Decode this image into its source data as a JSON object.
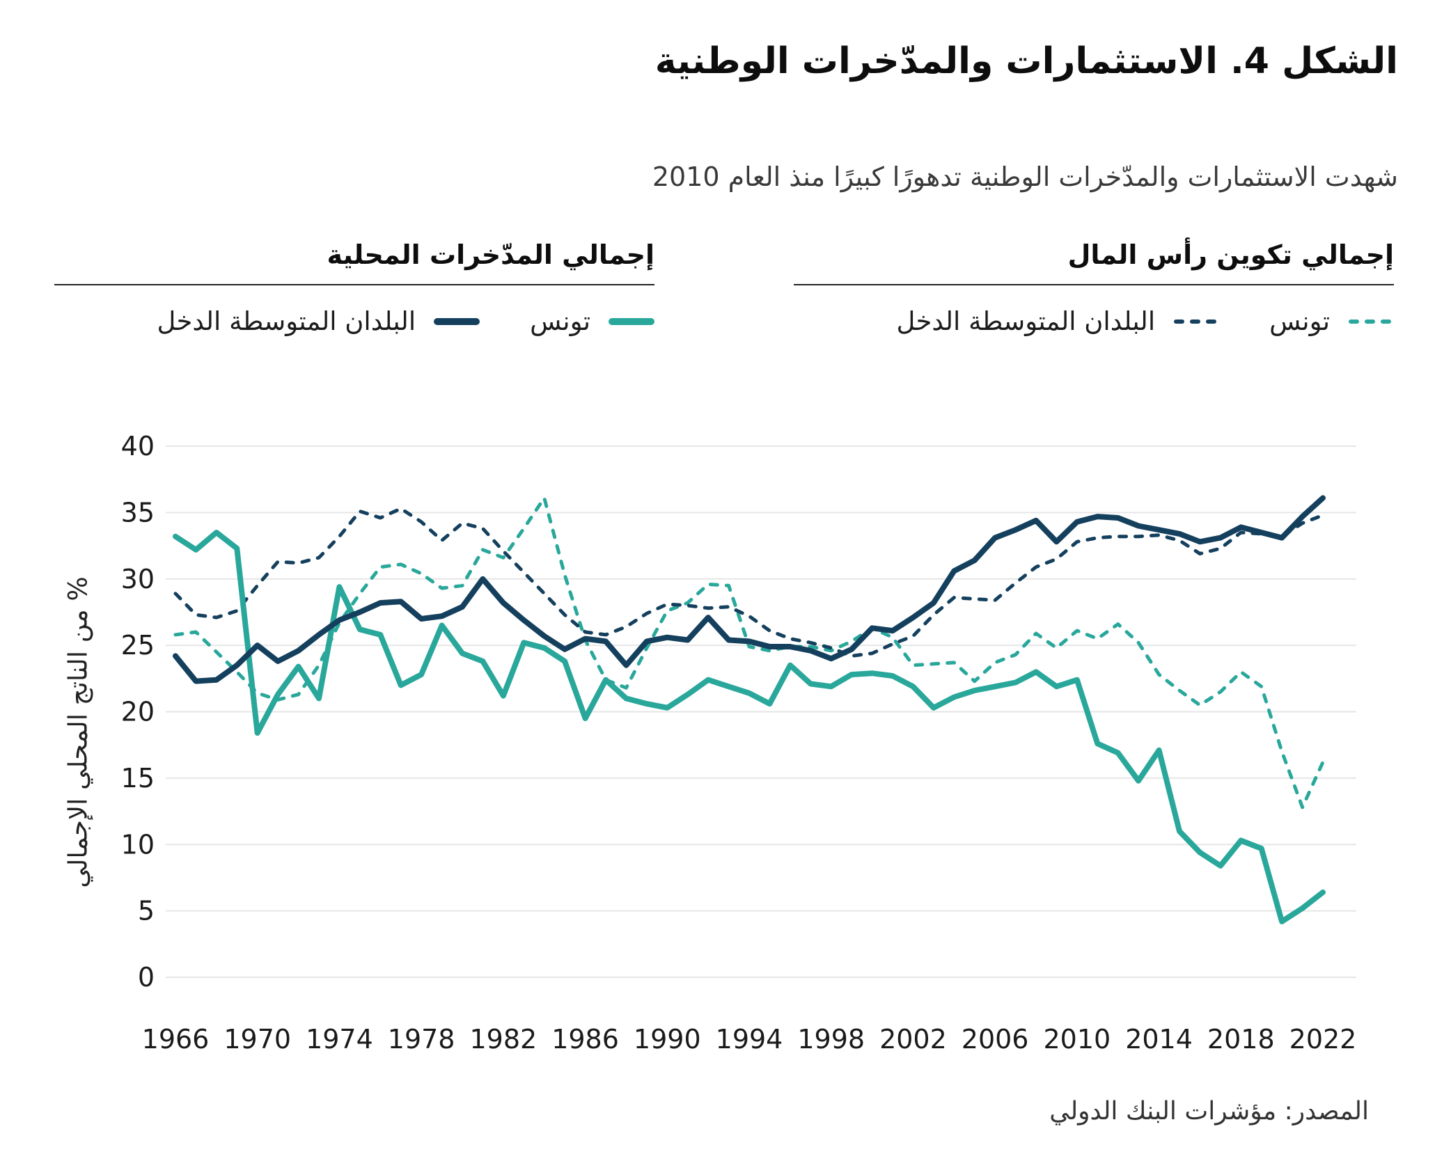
{
  "header": {
    "title": "الشكل 4. الاستثمارات والمدّخرات الوطنية",
    "subtitle": "شهدت الاستثمارات والمدّخرات الوطنية تدهورًا كبيرًا منذ العام 2010"
  },
  "legend": {
    "capital_formation": {
      "title": "إجمالي تكوين رأس المال",
      "items": [
        {
          "label": "تونس",
          "series": "tunisia_gcf"
        },
        {
          "label": "البلدان المتوسطة الدخل",
          "series": "mic_gcf"
        }
      ]
    },
    "domestic_savings": {
      "title": "إجمالي المدّخرات المحلية",
      "items": [
        {
          "label": "تونس",
          "series": "tunisia_gds"
        },
        {
          "label": "البلدان المتوسطة الدخل",
          "series": "mic_gds"
        }
      ]
    }
  },
  "source": "المصدر: مؤشرات البنك الدولي",
  "colors": {
    "teal": "#29A79B",
    "navy": "#14405E",
    "gridline": "#e6e6e6"
  },
  "chart_data": {
    "type": "line",
    "title": "",
    "xlabel": "",
    "ylabel": "% من الناتج المحلي الإجمالي",
    "ylim": [
      0,
      40
    ],
    "ytick_step": 5,
    "xlim": [
      1966,
      2022
    ],
    "xtick_step": 4,
    "grid": "horizontal",
    "legend_position": "top",
    "x": [
      1966,
      1967,
      1968,
      1969,
      1970,
      1971,
      1972,
      1973,
      1974,
      1975,
      1976,
      1977,
      1978,
      1979,
      1980,
      1981,
      1982,
      1983,
      1984,
      1985,
      1986,
      1987,
      1988,
      1989,
      1990,
      1991,
      1992,
      1993,
      1994,
      1995,
      1996,
      1997,
      1998,
      1999,
      2000,
      2001,
      2002,
      2003,
      2004,
      2005,
      2006,
      2007,
      2008,
      2009,
      2010,
      2011,
      2012,
      2013,
      2014,
      2015,
      2016,
      2017,
      2018,
      2019,
      2020,
      2021,
      2022
    ],
    "series": [
      {
        "key": "tunisia_gcf",
        "name": "تونس — إجمالي تكوين رأس المال",
        "color": "#29A79B",
        "style": "dashed",
        "values": [
          25.8,
          26.0,
          24.5,
          23.0,
          21.4,
          20.9,
          21.3,
          23.5,
          26.7,
          28.9,
          30.9,
          31.1,
          30.4,
          29.3,
          29.5,
          32.2,
          31.6,
          33.8,
          36.1,
          30.3,
          25.4,
          22.4,
          21.8,
          24.8,
          27.6,
          28.2,
          29.6,
          29.5,
          24.9,
          24.6,
          24.9,
          24.9,
          24.6,
          25.3,
          26.3,
          25.6,
          23.5,
          23.6,
          23.7,
          22.3,
          23.7,
          24.3,
          25.9,
          24.8,
          26.1,
          25.5,
          26.6,
          25.2,
          22.8,
          21.6,
          20.5,
          21.5,
          23.0,
          21.9,
          17.0,
          12.8,
          16.2
        ]
      },
      {
        "key": "mic_gcf",
        "name": "البلدان المتوسطة الدخل — إجمالي تكوين رأس المال",
        "color": "#14405E",
        "style": "dashed",
        "values": [
          28.9,
          27.3,
          27.1,
          27.6,
          29.5,
          31.3,
          31.2,
          31.6,
          33.2,
          35.1,
          34.6,
          35.3,
          34.3,
          32.9,
          34.2,
          33.8,
          32.1,
          30.5,
          28.9,
          27.3,
          26.0,
          25.8,
          26.4,
          27.4,
          28.1,
          28.0,
          27.8,
          27.9,
          27.2,
          26.1,
          25.5,
          25.2,
          24.8,
          24.2,
          24.4,
          25.1,
          25.7,
          27.3,
          28.6,
          28.5,
          28.4,
          29.7,
          30.9,
          31.5,
          32.8,
          33.1,
          33.2,
          33.2,
          33.3,
          32.9,
          31.9,
          32.3,
          33.5,
          33.4,
          33.2,
          34.2,
          34.8
        ]
      },
      {
        "key": "tunisia_gds",
        "name": "تونس — إجمالي المدّخرات المحلية",
        "color": "#29A79B",
        "style": "solid",
        "values": [
          33.2,
          32.2,
          33.5,
          32.3,
          18.4,
          21.3,
          23.4,
          21.0,
          29.4,
          26.2,
          25.8,
          22.0,
          22.8,
          26.5,
          24.4,
          23.8,
          21.2,
          25.2,
          24.8,
          23.8,
          19.5,
          22.4,
          21.0,
          20.6,
          20.3,
          21.3,
          22.4,
          21.9,
          21.4,
          20.6,
          23.5,
          22.1,
          21.9,
          22.8,
          22.9,
          22.7,
          21.9,
          20.3,
          21.1,
          21.6,
          21.9,
          22.2,
          23.0,
          21.9,
          22.4,
          17.6,
          16.9,
          14.8,
          17.1,
          11.0,
          9.4,
          8.4,
          10.3,
          9.7,
          4.2,
          5.2,
          6.4
        ]
      },
      {
        "key": "mic_gds",
        "name": "البلدان المتوسطة الدخل — إجمالي المدّخرات المحلية",
        "color": "#14405E",
        "style": "solid",
        "values": [
          24.2,
          22.3,
          22.4,
          23.5,
          25.0,
          23.8,
          24.6,
          25.8,
          26.9,
          27.5,
          28.2,
          28.3,
          27.0,
          27.2,
          27.9,
          30.0,
          28.2,
          26.9,
          25.7,
          24.7,
          25.5,
          25.3,
          23.5,
          25.3,
          25.6,
          25.4,
          27.1,
          25.4,
          25.3,
          24.9,
          24.9,
          24.6,
          24.0,
          24.7,
          26.3,
          26.1,
          27.1,
          28.2,
          30.6,
          31.4,
          33.1,
          33.7,
          34.4,
          32.8,
          34.3,
          34.7,
          34.6,
          34.0,
          33.7,
          33.4,
          32.8,
          33.1,
          33.9,
          33.5,
          33.1,
          34.7,
          36.1
        ]
      }
    ]
  }
}
